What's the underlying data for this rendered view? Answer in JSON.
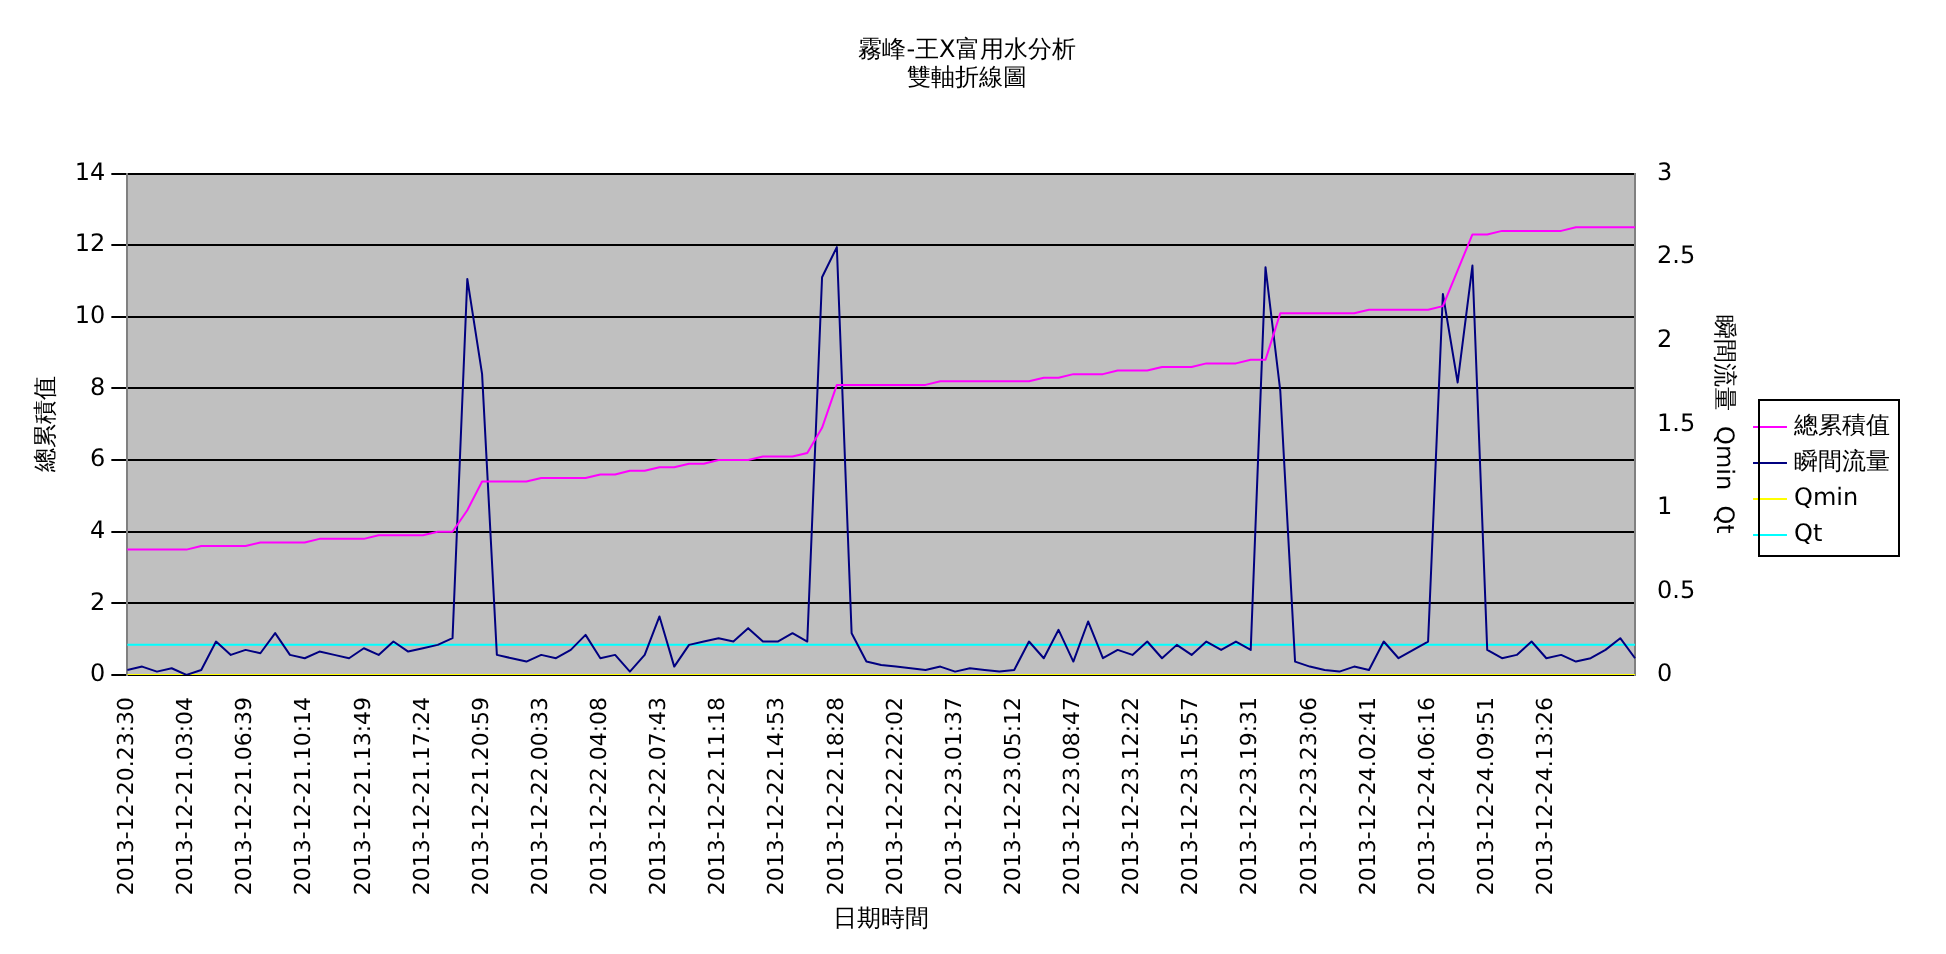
{
  "chart_data": {
    "type": "line",
    "title": "霧峰-王X富用水分析",
    "subtitle": "雙軸折線圖",
    "xlabel": "日期時間",
    "ylabel": "總累積值",
    "y2label": "瞬間流量  Qmin  Qt",
    "categories": [
      "2013-12-20.23:30",
      null,
      null,
      null,
      "2013-12-21.03:04",
      null,
      null,
      null,
      "2013-12-21.06:39",
      null,
      null,
      null,
      "2013-12-21.10:14",
      null,
      null,
      null,
      "2013-12-21.13:49",
      null,
      null,
      null,
      "2013-12-21.17:24",
      null,
      null,
      null,
      "2013-12-21.20:59",
      null,
      null,
      null,
      "2013-12-22.00:33",
      null,
      null,
      null,
      "2013-12-22.04:08",
      null,
      null,
      null,
      "2013-12-22.07:43",
      null,
      null,
      null,
      "2013-12-22.11:18",
      null,
      null,
      null,
      "2013-12-22.14:53",
      null,
      null,
      null,
      "2013-12-22.18:28",
      null,
      null,
      null,
      "2013-12-22.22:02",
      null,
      null,
      null,
      "2013-12-23.01:37",
      null,
      null,
      null,
      "2013-12-23.05:12",
      null,
      null,
      null,
      "2013-12-23.08:47",
      null,
      null,
      null,
      "2013-12-23.12:22",
      null,
      null,
      null,
      "2013-12-23.15:57",
      null,
      null,
      null,
      "2013-12-23.19:31",
      null,
      null,
      null,
      "2013-12-23.23:06",
      null,
      null,
      null,
      "2013-12-24.02:41",
      null,
      null,
      null,
      "2013-12-24.06:16",
      null,
      null,
      null,
      "2013-12-24.09:51",
      null,
      null,
      null,
      "2013-12-24.13:26",
      null,
      null,
      null,
      null,
      null,
      null
    ],
    "series": [
      {
        "name": "總累積值",
        "color": "#ff00ff",
        "values": [
          3.5,
          3.5,
          3.5,
          3.5,
          3.5,
          3.6,
          3.6,
          3.6,
          3.6,
          3.7,
          3.7,
          3.7,
          3.7,
          3.8,
          3.8,
          3.8,
          3.8,
          3.9,
          3.9,
          3.9,
          3.9,
          4.0,
          4.0,
          4.6,
          5.4,
          5.4,
          5.4,
          5.4,
          5.5,
          5.5,
          5.5,
          5.5,
          5.6,
          5.6,
          5.7,
          5.7,
          5.8,
          5.8,
          5.9,
          5.9,
          6.0,
          6.0,
          6.0,
          6.1,
          6.1,
          6.1,
          6.2,
          6.9,
          8.1,
          8.1,
          8.1,
          8.1,
          8.1,
          8.1,
          8.1,
          8.2,
          8.2,
          8.2,
          8.2,
          8.2,
          8.2,
          8.2,
          8.3,
          8.3,
          8.4,
          8.4,
          8.4,
          8.5,
          8.5,
          8.5,
          8.6,
          8.6,
          8.6,
          8.7,
          8.7,
          8.7,
          8.8,
          8.8,
          10.1,
          10.1,
          10.1,
          10.1,
          10.1,
          10.1,
          10.2,
          10.2,
          10.2,
          10.2,
          10.2,
          10.3,
          11.3,
          12.3,
          12.3,
          12.4,
          12.4,
          12.4,
          12.4,
          12.4,
          12.5,
          12.5,
          12.5,
          12.5,
          12.5
        ]
      },
      {
        "name": "瞬間流量",
        "color": "#000080",
        "axis": "y2",
        "values": [
          0.03,
          0.05,
          0.02,
          0.04,
          0.0,
          0.03,
          0.2,
          0.12,
          0.15,
          0.13,
          0.25,
          0.12,
          0.1,
          0.14,
          0.12,
          0.1,
          0.16,
          0.12,
          0.2,
          0.14,
          0.16,
          0.18,
          0.22,
          2.37,
          1.8,
          0.12,
          0.1,
          0.08,
          0.12,
          0.1,
          0.15,
          0.24,
          0.1,
          0.12,
          0.02,
          0.12,
          0.35,
          0.05,
          0.18,
          0.2,
          0.22,
          0.2,
          0.28,
          0.2,
          0.2,
          0.25,
          0.2,
          2.38,
          2.56,
          0.25,
          0.08,
          0.06,
          0.05,
          0.04,
          0.03,
          0.05,
          0.02,
          0.04,
          0.03,
          0.02,
          0.03,
          0.2,
          0.1,
          0.27,
          0.08,
          0.32,
          0.1,
          0.15,
          0.12,
          0.2,
          0.1,
          0.18,
          0.12,
          0.2,
          0.15,
          0.2,
          0.15,
          2.44,
          1.7,
          0.08,
          0.05,
          0.03,
          0.02,
          0.05,
          0.03,
          0.2,
          0.1,
          0.15,
          0.2,
          2.28,
          1.75,
          2.45,
          0.15,
          0.1,
          0.12,
          0.2,
          0.1,
          0.12,
          0.08,
          0.1,
          0.15,
          0.22,
          0.1
        ]
      },
      {
        "name": "Qmin",
        "color": "#ffff00",
        "axis": "y2",
        "values": [
          0,
          0,
          0,
          0,
          0,
          0,
          0,
          0,
          0,
          0,
          0,
          0,
          0,
          0,
          0,
          0,
          0,
          0,
          0,
          0,
          0,
          0,
          0,
          0,
          0,
          0,
          0,
          0,
          0,
          0,
          0,
          0,
          0,
          0,
          0,
          0,
          0,
          0,
          0,
          0,
          0,
          0,
          0,
          0,
          0,
          0,
          0,
          0,
          0,
          0,
          0,
          0,
          0,
          0,
          0,
          0,
          0,
          0,
          0,
          0,
          0,
          0,
          0,
          0,
          0,
          0,
          0,
          0,
          0,
          0,
          0,
          0,
          0,
          0,
          0,
          0,
          0,
          0,
          0,
          0,
          0,
          0,
          0,
          0,
          0,
          0,
          0,
          0,
          0,
          0,
          0,
          0,
          0,
          0,
          0,
          0,
          0,
          0,
          0,
          0,
          0,
          0,
          0
        ]
      },
      {
        "name": "Qt",
        "color": "#00ffff",
        "axis": "y2",
        "values": [
          0.18,
          0.18,
          0.18,
          0.18,
          0.18,
          0.18,
          0.18,
          0.18,
          0.18,
          0.18,
          0.18,
          0.18,
          0.18,
          0.18,
          0.18,
          0.18,
          0.18,
          0.18,
          0.18,
          0.18,
          0.18,
          0.18,
          0.18,
          0.18,
          0.18,
          0.18,
          0.18,
          0.18,
          0.18,
          0.18,
          0.18,
          0.18,
          0.18,
          0.18,
          0.18,
          0.18,
          0.18,
          0.18,
          0.18,
          0.18,
          0.18,
          0.18,
          0.18,
          0.18,
          0.18,
          0.18,
          0.18,
          0.18,
          0.18,
          0.18,
          0.18,
          0.18,
          0.18,
          0.18,
          0.18,
          0.18,
          0.18,
          0.18,
          0.18,
          0.18,
          0.18,
          0.18,
          0.18,
          0.18,
          0.18,
          0.18,
          0.18,
          0.18,
          0.18,
          0.18,
          0.18,
          0.18,
          0.18,
          0.18,
          0.18,
          0.18,
          0.18,
          0.18,
          0.18,
          0.18,
          0.18,
          0.18,
          0.18,
          0.18,
          0.18,
          0.18,
          0.18,
          0.18,
          0.18,
          0.18,
          0.18,
          0.18,
          0.18,
          0.18,
          0.18,
          0.18,
          0.18,
          0.18,
          0.18,
          0.18,
          0.18,
          0.18,
          0.18
        ]
      }
    ],
    "ylim": [
      0,
      14
    ],
    "yticks": [
      0,
      2,
      4,
      6,
      8,
      10,
      12,
      14
    ],
    "y2lim": [
      0,
      3
    ],
    "y2ticks": [
      0,
      0.5,
      1,
      1.5,
      2,
      2.5,
      3
    ],
    "grid": "y",
    "legend": "right",
    "marker": "none",
    "line_style": "solid"
  }
}
